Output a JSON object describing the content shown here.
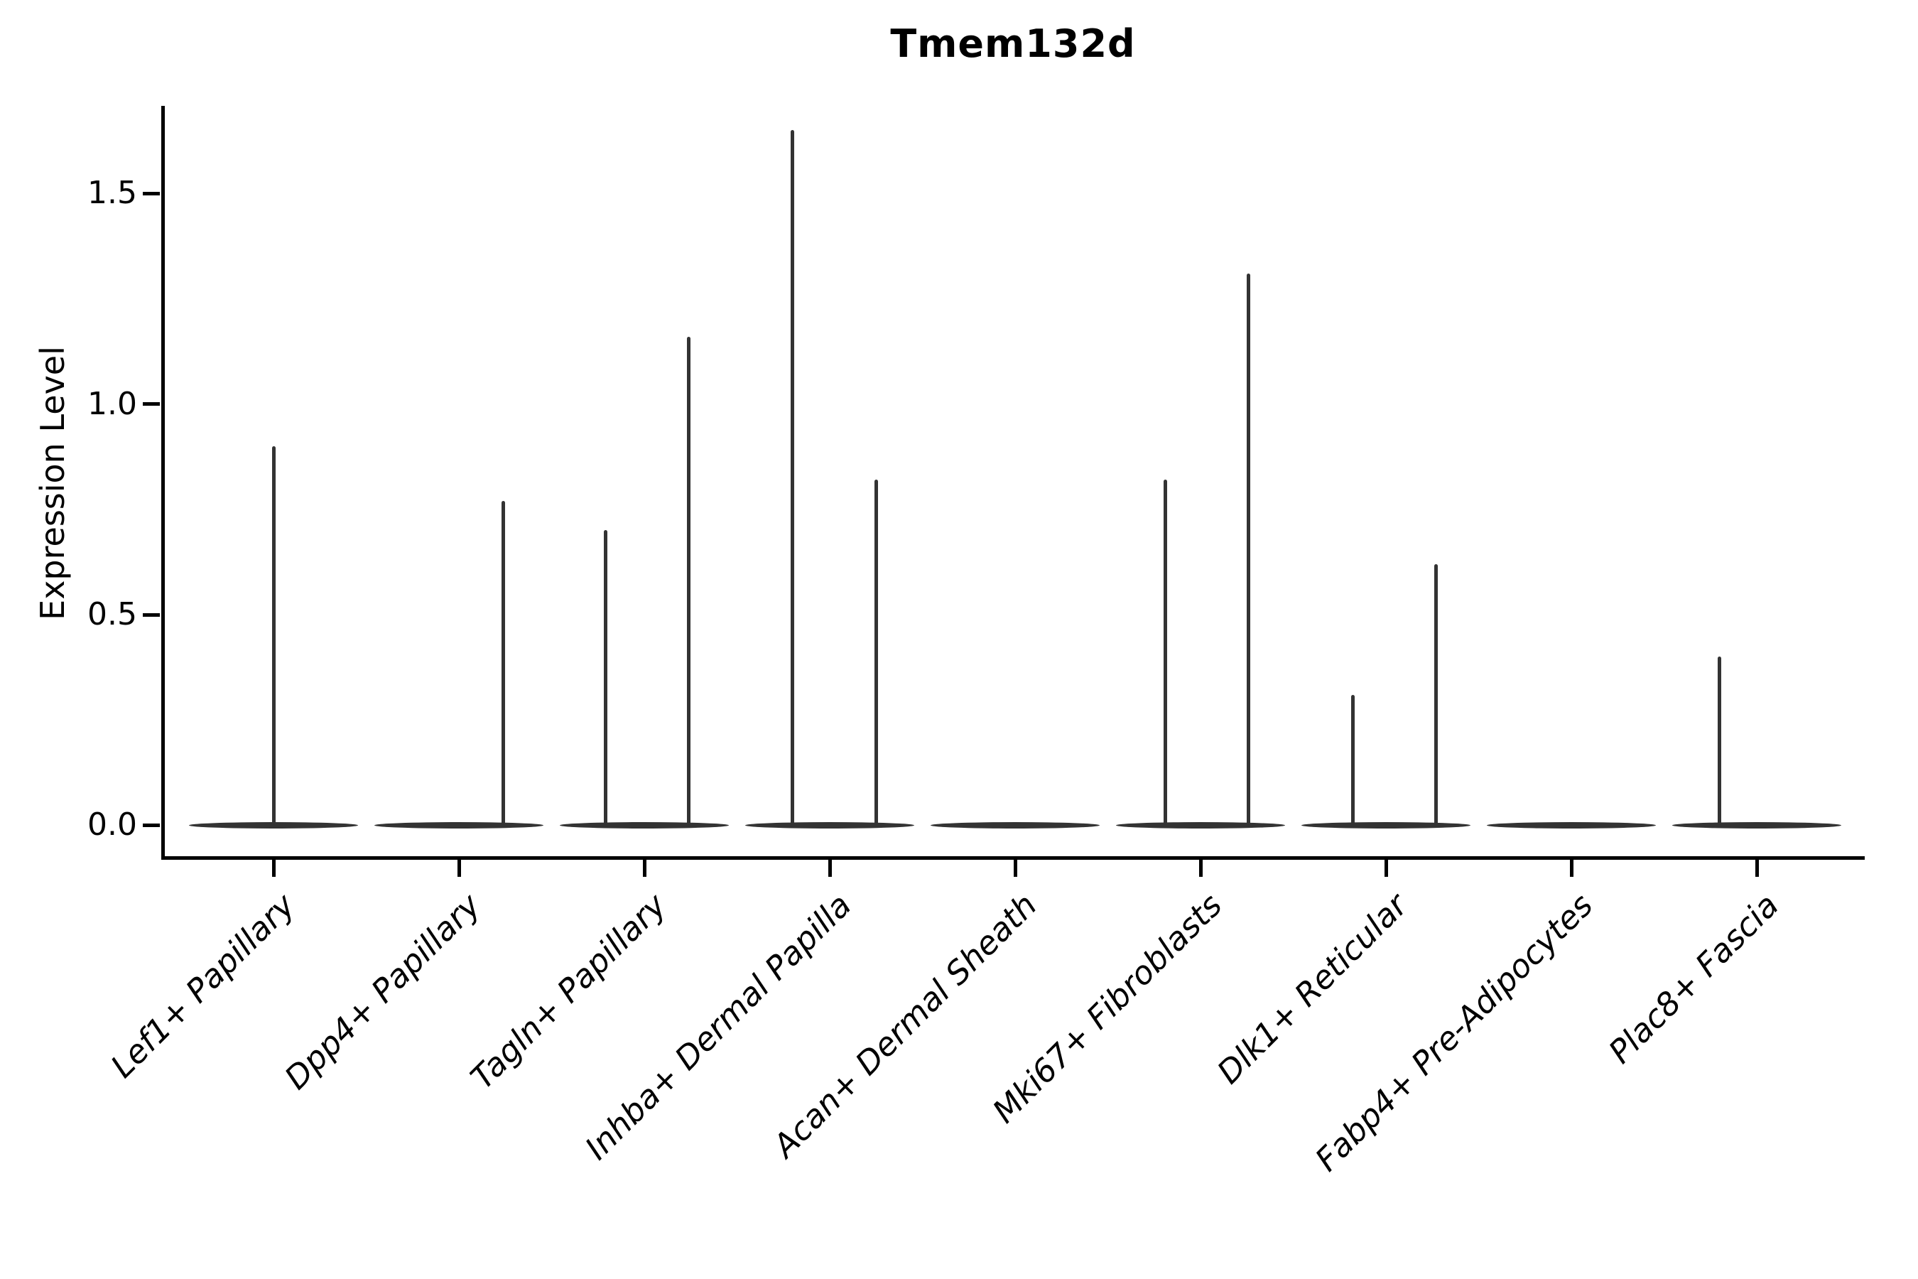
{
  "chart_data": {
    "type": "violin",
    "title": "Tmem132d",
    "ylabel": "Expression Level",
    "xlabel": "",
    "yticks": [
      0.0,
      0.5,
      1.0,
      1.5
    ],
    "ytick_labels": [
      "0.0",
      "0.5",
      "1.0",
      "1.5"
    ],
    "ylim": [
      -0.082,
      1.708
    ],
    "grid": false,
    "legend": "none",
    "background_color": "#ffffff",
    "violin_color": "#333333",
    "axis_color": "#000000",
    "text_color": "#000000",
    "categories": [
      "Lef1+ Papillary",
      "Dpp4+ Papillary",
      "Tagln+ Papillary",
      "Inhba+ Dermal Papilla",
      "Acan+ Dermal Sheath",
      "Mki67+ Fibroblasts",
      "Dlk1+ Reticular",
      "Fabp4+ Pre-Adipocytes",
      "Plac8+ Fascia"
    ],
    "violins": [
      {
        "category": "Lef1+ Papillary",
        "baseline_value": 0.0,
        "spikes": [
          {
            "offset": 0.0,
            "max_expression": 0.9
          }
        ]
      },
      {
        "category": "Dpp4+ Papillary",
        "baseline_value": 0.0,
        "spikes": [
          {
            "offset": 0.24,
            "max_expression": 0.77
          }
        ]
      },
      {
        "category": "Tagln+ Papillary",
        "baseline_value": 0.0,
        "spikes": [
          {
            "offset": -0.21,
            "max_expression": 0.7
          },
          {
            "offset": 0.24,
            "max_expression": 1.16
          }
        ]
      },
      {
        "category": "Inhba+ Dermal Papilla",
        "baseline_value": 0.0,
        "spikes": [
          {
            "offset": -0.2,
            "max_expression": 1.65
          },
          {
            "offset": 0.25,
            "max_expression": 0.82
          }
        ]
      },
      {
        "category": "Acan+ Dermal Sheath",
        "baseline_value": 0.0,
        "spikes": []
      },
      {
        "category": "Mki67+ Fibroblasts",
        "baseline_value": 0.0,
        "spikes": [
          {
            "offset": -0.19,
            "max_expression": 0.82
          },
          {
            "offset": 0.26,
            "max_expression": 1.31
          }
        ]
      },
      {
        "category": "Dlk1+ Reticular",
        "baseline_value": 0.0,
        "spikes": [
          {
            "offset": -0.18,
            "max_expression": 0.31
          },
          {
            "offset": 0.27,
            "max_expression": 0.62
          }
        ]
      },
      {
        "category": "Fabp4+ Pre-Adipocytes",
        "baseline_value": 0.0,
        "spikes": []
      },
      {
        "category": "Plac8+ Fascia",
        "baseline_value": 0.0,
        "spikes": [
          {
            "offset": -0.2,
            "max_expression": 0.4
          }
        ]
      }
    ]
  }
}
